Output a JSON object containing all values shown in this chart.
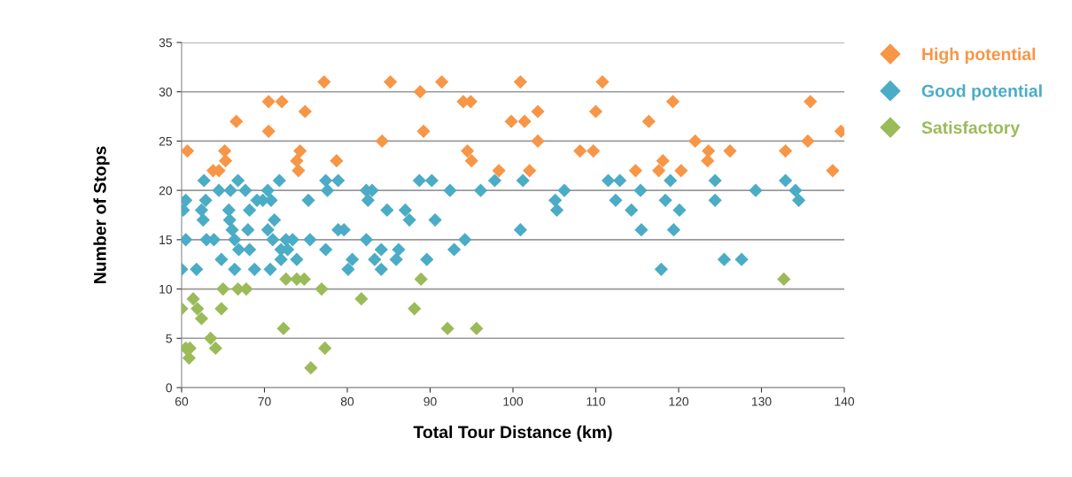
{
  "chart_data": {
    "type": "scatter",
    "xlabel": "Total Tour Distance (km)",
    "ylabel": "Number of Stops",
    "xlim": [
      60,
      140
    ],
    "xticks": [
      60,
      70,
      80,
      90,
      100,
      110,
      120,
      130,
      140
    ],
    "ylim": [
      0,
      35
    ],
    "yticks": [
      0,
      5,
      10,
      15,
      20,
      25,
      30,
      35
    ],
    "grid": "y",
    "legend": "top right",
    "marker": "diamond",
    "series": [
      {
        "name": "High potential",
        "color": "#f79646",
        "x": [
          60.7,
          63.8,
          64.5,
          65.2,
          65.3,
          66.6,
          70.5,
          70.5,
          72.1,
          74.9,
          77.2,
          85.2,
          88.8,
          91.4,
          89.2,
          94.0,
          94.9,
          84.2,
          74.3,
          73.9,
          74.1,
          78.7,
          94.5,
          95.0,
          98.3,
          99.8,
          100.9,
          110.8,
          101.4,
          103.0,
          103.0,
          102.0,
          110.0,
          108.1,
          109.7,
          119.3,
          116.4,
          122.0,
          123.6,
          123.5,
          126.2,
          114.8,
          118.1,
          117.6,
          120.3,
          132.9,
          135.6,
          135.9,
          139.6,
          138.6
        ],
        "values": [
          24,
          22,
          22,
          24,
          23,
          27,
          29,
          26,
          29,
          28,
          31,
          31,
          30,
          31,
          26,
          29,
          29,
          25,
          24,
          23,
          22,
          23,
          24,
          23,
          22,
          27,
          31,
          31,
          27,
          28,
          25,
          22,
          28,
          24,
          24,
          29,
          27,
          25,
          24,
          23,
          24,
          22,
          23,
          22,
          22,
          24,
          25,
          29,
          26,
          22
        ]
      },
      {
        "name": "Good potential",
        "color": "#4bacc6",
        "x": [
          62.7,
          66.8,
          71.8,
          77.4,
          78.9,
          88.7,
          90.2,
          97.8,
          64.5,
          65.9,
          67.7,
          70.4,
          77.6,
          82.3,
          83.0,
          92.4,
          96.1,
          60.5,
          62.9,
          69.1,
          69.8,
          70.8,
          75.3,
          82.5,
          60.2,
          62.4,
          65.7,
          68.2,
          84.8,
          87.0,
          62.6,
          65.8,
          71.2,
          87.5,
          90.6,
          66.1,
          68.0,
          70.4,
          78.9,
          79.6,
          60.5,
          63.0,
          63.9,
          66.4,
          71.0,
          72.6,
          73.4,
          75.5,
          82.3,
          94.2,
          66.9,
          68.2,
          72.0,
          72.8,
          77.4,
          84.1,
          86.2,
          92.9,
          64.8,
          72.0,
          73.9,
          80.6,
          83.3,
          85.9,
          89.6,
          60.0,
          61.8,
          66.4,
          68.8,
          70.7,
          80.1,
          84.1,
          101.2,
          111.5,
          112.9,
          119.0,
          124.4,
          132.9,
          106.2,
          115.4,
          129.3,
          134.1,
          105.1,
          112.4,
          118.4,
          124.4,
          134.5,
          105.3,
          114.3,
          120.1,
          100.9,
          115.5,
          119.4,
          125.5,
          127.6,
          117.9
        ],
        "values": [
          21,
          21,
          21,
          21,
          21,
          21,
          21,
          21,
          20,
          20,
          20,
          20,
          20,
          20,
          20,
          20,
          20,
          19,
          19,
          19,
          19,
          19,
          19,
          19,
          18,
          18,
          18,
          18,
          18,
          18,
          17,
          17,
          17,
          17,
          17,
          16,
          16,
          16,
          16,
          16,
          15,
          15,
          15,
          15,
          15,
          15,
          15,
          15,
          15,
          15,
          14,
          14,
          14,
          14,
          14,
          14,
          14,
          14,
          13,
          13,
          13,
          13,
          13,
          13,
          13,
          12,
          12,
          12,
          12,
          12,
          12,
          12,
          21,
          21,
          21,
          21,
          21,
          21,
          20,
          20,
          20,
          20,
          19,
          19,
          19,
          19,
          19,
          18,
          18,
          18,
          16,
          16,
          16,
          13,
          13,
          12
        ]
      },
      {
        "name": "Satisfactory",
        "color": "#9bbb59",
        "x": [
          72.6,
          73.9,
          74.8,
          88.9,
          65.0,
          66.8,
          67.8,
          76.9,
          61.4,
          81.7,
          60.0,
          61.9,
          64.8,
          88.1,
          62.4,
          72.3,
          92.1,
          95.6,
          63.5,
          60.5,
          61.0,
          64.1,
          77.3,
          60.9,
          75.6,
          132.7
        ],
        "values": [
          11,
          11,
          11,
          11,
          10,
          10,
          10,
          10,
          9,
          9,
          8,
          8,
          8,
          8,
          7,
          6,
          6,
          6,
          5,
          4,
          4,
          4,
          4,
          3,
          2,
          11
        ]
      }
    ]
  }
}
